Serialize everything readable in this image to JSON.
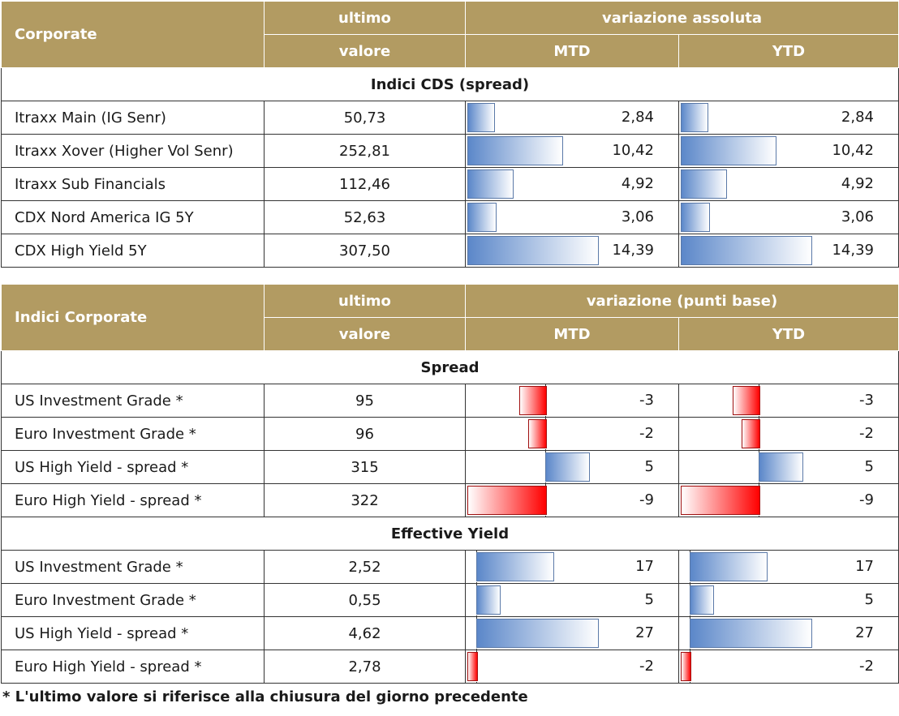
{
  "table1": {
    "header": {
      "col1": "Corporate",
      "col2_top": "ultimo",
      "col2_bottom": "valore",
      "group": "variazione assoluta",
      "mtd": "MTD",
      "ytd": "YTD"
    },
    "section": "Indici CDS (spread)",
    "scale_max": 14.39,
    "rows": [
      {
        "name": "Itraxx Main (IG Senr)",
        "value": "50,73",
        "mtd": "2,84",
        "ytd": "2,84",
        "mtd_n": 2.84,
        "ytd_n": 2.84
      },
      {
        "name": "Itraxx Xover (Higher Vol Senr)",
        "value": "252,81",
        "mtd": "10,42",
        "ytd": "10,42",
        "mtd_n": 10.42,
        "ytd_n": 10.42
      },
      {
        "name": "Itraxx Sub Financials",
        "value": "112,46",
        "mtd": "4,92",
        "ytd": "4,92",
        "mtd_n": 4.92,
        "ytd_n": 4.92
      },
      {
        "name": "CDX Nord America IG 5Y",
        "value": "52,63",
        "mtd": "3,06",
        "ytd": "3,06",
        "mtd_n": 3.06,
        "ytd_n": 3.06
      },
      {
        "name": "CDX High Yield 5Y",
        "value": "307,50",
        "mtd": "14,39",
        "ytd": "14,39",
        "mtd_n": 14.39,
        "ytd_n": 14.39
      }
    ]
  },
  "table2": {
    "header": {
      "col1": "Indici Corporate",
      "col2_top": "ultimo",
      "col2_bottom": "valore",
      "group": "variazione (punti base)",
      "mtd": "MTD",
      "ytd": "YTD"
    },
    "sections": [
      {
        "title": "Spread",
        "min": -9,
        "max": 6,
        "rows": [
          {
            "name": "US Investment Grade *",
            "value": "95",
            "mtd": "-3",
            "ytd": "-3",
            "mtd_n": -3,
            "ytd_n": -3
          },
          {
            "name": "Euro Investment Grade *",
            "value": "96",
            "mtd": "-2",
            "ytd": "-2",
            "mtd_n": -2,
            "ytd_n": -2
          },
          {
            "name": "US High Yield  - spread *",
            "value": "315",
            "mtd": "5",
            "ytd": "5",
            "mtd_n": 5,
            "ytd_n": 5
          },
          {
            "name": "Euro High Yield  - spread *",
            "value": "322",
            "mtd": "-9",
            "ytd": "-9",
            "mtd_n": -9,
            "ytd_n": -9
          }
        ]
      },
      {
        "title": "Effective Yield",
        "min": -2,
        "max": 27,
        "rows": [
          {
            "name": "US Investment Grade *",
            "value": "2,52",
            "mtd": "17",
            "ytd": "17",
            "mtd_n": 17,
            "ytd_n": 17
          },
          {
            "name": "Euro Investment Grade *",
            "value": "0,55",
            "mtd": "5",
            "ytd": "5",
            "mtd_n": 5,
            "ytd_n": 5
          },
          {
            "name": "US High Yield  - spread *",
            "value": "4,62",
            "mtd": "27",
            "ytd": "27",
            "mtd_n": 27,
            "ytd_n": 27
          },
          {
            "name": "Euro High Yield  - spread *",
            "value": "2,78",
            "mtd": "-2",
            "ytd": "-2",
            "mtd_n": -2,
            "ytd_n": -2
          }
        ]
      }
    ]
  },
  "footnote": "* L'ultimo valore si riferisce alla chiusura del giorno precedente",
  "colors": {
    "header_bg": "#b29b62",
    "positive": "#5b87c9",
    "negative": "#ff0000"
  }
}
